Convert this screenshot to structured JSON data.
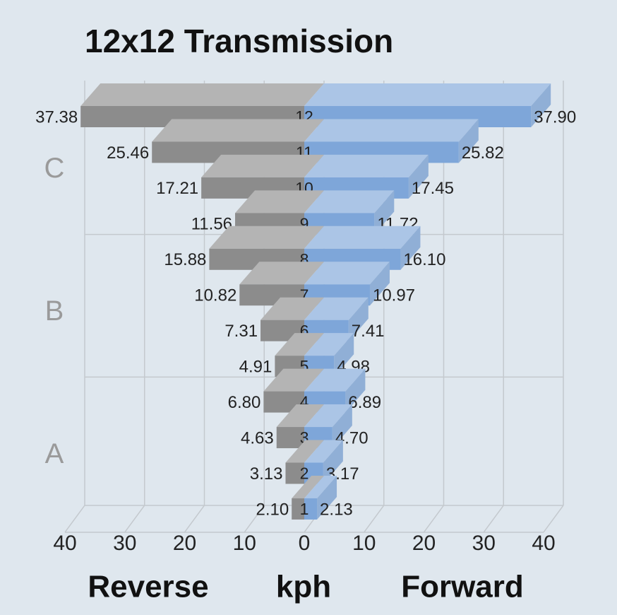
{
  "chart_data": {
    "type": "butterfly-bar",
    "title": "12x12 Transmission",
    "categories": [
      "12",
      "11",
      "10",
      "9",
      "8",
      "7",
      "6",
      "5",
      "4",
      "3",
      "2",
      "1"
    ],
    "group_labels": [
      "C",
      "B",
      "A"
    ],
    "series": [
      {
        "name": "Reverse",
        "color": "#8c8c8c",
        "side": "left",
        "values": [
          37.38,
          25.46,
          17.21,
          11.56,
          15.88,
          10.82,
          7.31,
          4.91,
          6.8,
          4.63,
          3.13,
          2.1
        ],
        "value_labels": [
          "37.38",
          "25.46",
          "17.21",
          "11.56",
          "15.88",
          "10.82",
          "7.31",
          "4.91",
          "6.80",
          "4.63",
          "3.13",
          "2.10"
        ]
      },
      {
        "name": "Forward",
        "color": "#7ea6d9",
        "side": "right",
        "values": [
          37.9,
          25.82,
          17.45,
          11.72,
          16.1,
          10.97,
          7.41,
          4.98,
          6.89,
          4.7,
          3.17,
          2.13
        ],
        "value_labels": [
          "37.90",
          "25.82",
          "17.45",
          "11.72",
          "16.10",
          "10.97",
          "7.41",
          "4.98",
          "6.89",
          "4.70",
          "3.17",
          "2.13"
        ]
      }
    ],
    "x_label": "kph",
    "xlim": [
      -40,
      40
    ],
    "xticks": [
      {
        "value": -40,
        "label": "40"
      },
      {
        "value": -30,
        "label": "30"
      },
      {
        "value": -20,
        "label": "20"
      },
      {
        "value": -10,
        "label": "10"
      },
      0,
      10,
      20,
      30,
      40
    ]
  }
}
